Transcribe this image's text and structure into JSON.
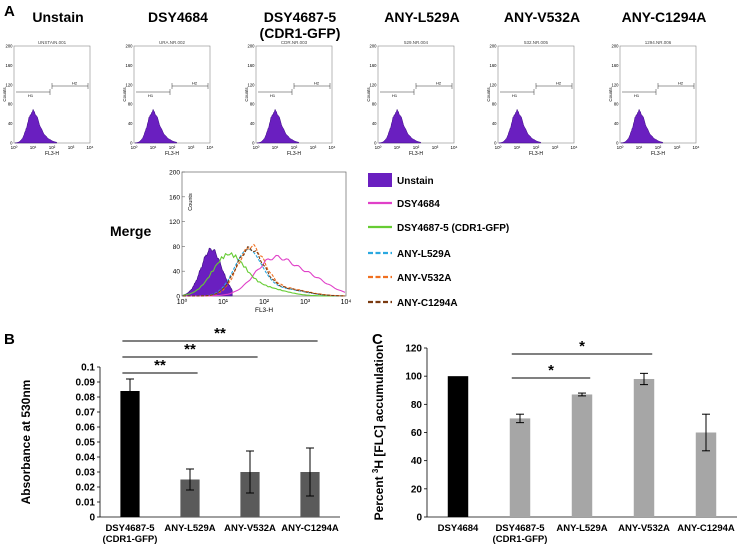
{
  "panel_labels": {
    "a": "A",
    "b": "B",
    "c": "C"
  },
  "flow": {
    "x_label": "FL3-H",
    "y_label": "Counts",
    "gate_h1": "H1",
    "gate_h2": "H2",
    "x_ticks": [
      "10⁰",
      "10¹",
      "10²",
      "10³",
      "10⁴"
    ],
    "y_ticks_small": [
      "200",
      "160",
      "120",
      "80",
      "40",
      "0"
    ],
    "y_ticks_merge": [
      "200",
      "160",
      "120",
      "80",
      "40",
      "0"
    ],
    "fill_color": "#6a1fc0",
    "panels": [
      {
        "title_lines": [
          "Unstain"
        ],
        "file": "UNSTAIN.001"
      },
      {
        "title_lines": [
          "DSY4684"
        ],
        "file": "URA.NR.002"
      },
      {
        "title_lines": [
          "DSY4687-5",
          "(CDR1-GFP)"
        ],
        "file": "CDR.NR.003"
      },
      {
        "title_lines": [
          "ANY-L529A"
        ],
        "file": "529.NR.004"
      },
      {
        "title_lines": [
          "ANY-V532A"
        ],
        "file": "532.NR.005"
      },
      {
        "title_lines": [
          "ANY-C1294A"
        ],
        "file": "1294.NR.006"
      }
    ],
    "merge_title": "Merge",
    "legend": [
      {
        "label": "Unstain",
        "color": "#6a1fc0",
        "style": "fill"
      },
      {
        "label": "DSY4684",
        "color": "#e040c8",
        "style": "solid"
      },
      {
        "label": "DSY4687-5 (CDR1-GFP)",
        "color": "#66cc33",
        "style": "solid"
      },
      {
        "label": "ANY-L529A",
        "color": "#2aa8e0",
        "style": "dash"
      },
      {
        "label": "ANY-V532A",
        "color": "#f07020",
        "style": "dash"
      },
      {
        "label": "ANY-C1294A",
        "color": "#7a3a10",
        "style": "dash"
      }
    ]
  },
  "chart_data": [
    {
      "type": "bar",
      "panel": "B",
      "categories": [
        "DSY4687-5\n(CDR1-GFP)",
        "ANY-L529A",
        "ANY-V532A",
        "ANY-C1294A"
      ],
      "values": [
        0.084,
        0.025,
        0.03,
        0.03
      ],
      "errors": [
        0.008,
        0.007,
        0.014,
        0.016
      ],
      "colors": [
        "#000000",
        "#5a5a5a",
        "#5a5a5a",
        "#5a5a5a"
      ],
      "ylabel": "Absorbance at 530nm",
      "ylim": [
        0,
        0.1
      ],
      "yticks": [
        "0",
        "0.01",
        "0.02",
        "0.03",
        "0.04",
        "0.05",
        "0.06",
        "0.07",
        "0.08",
        "0.09",
        "0.1"
      ],
      "significance": [
        {
          "from": 0,
          "to": 1,
          "label": "**"
        },
        {
          "from": 0,
          "to": 2,
          "label": "**"
        },
        {
          "from": 0,
          "to": 3,
          "label": "**"
        }
      ]
    },
    {
      "type": "bar",
      "panel": "C",
      "categories": [
        "DSY4684",
        "DSY4687-5\n(CDR1-GFP)",
        "ANY-L529A",
        "ANY-V532A",
        "ANY-C1294A"
      ],
      "values": [
        100,
        70,
        87,
        98,
        60
      ],
      "errors": [
        0,
        3,
        1,
        4,
        13
      ],
      "colors": [
        "#000000",
        "#a6a6a6",
        "#a6a6a6",
        "#a6a6a6",
        "#a6a6a6"
      ],
      "ylabel_parts": [
        "Percent ",
        "3",
        "H [FLC] accumulation"
      ],
      "ylim": [
        0,
        120
      ],
      "yticks": [
        "0",
        "20",
        "40",
        "60",
        "80",
        "100",
        "120"
      ],
      "significance": [
        {
          "from": 1,
          "to": 2,
          "label": "*"
        },
        {
          "from": 1,
          "to": 3,
          "label": "*"
        }
      ]
    }
  ]
}
